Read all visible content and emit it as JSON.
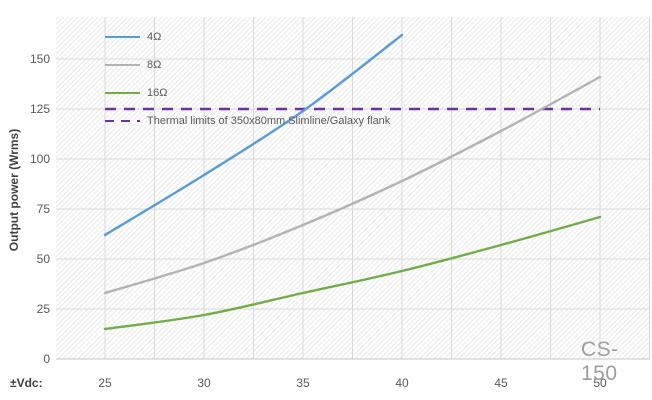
{
  "watermark": "CS-150",
  "axes": {
    "y_title": "Output power (Wrms)",
    "x_prefix_label": "±Vdc:"
  },
  "legend": {
    "items": [
      {
        "label": "4Ω",
        "color": "#5B9BD5",
        "style": "solid"
      },
      {
        "label": "8Ω",
        "color": "#B3B3B3",
        "style": "solid"
      },
      {
        "label": "16Ω",
        "color": "#70AD47",
        "style": "solid"
      },
      {
        "label": "Thermal limits of 350x80mm Slimline/Galaxy flank",
        "color": "#7030A0",
        "style": "dashed"
      }
    ]
  },
  "chart_data": {
    "type": "line",
    "title": "",
    "xlabel": "±Vdc:",
    "ylabel": "Output power (Wrms)",
    "x": [
      25,
      30,
      35,
      40,
      45,
      50
    ],
    "xticks": [
      25,
      30,
      35,
      40,
      45,
      50
    ],
    "yticks": [
      0,
      25,
      50,
      75,
      100,
      125,
      150
    ],
    "xlim": [
      22.5,
      52.5
    ],
    "ylim": [
      0,
      171
    ],
    "grid": {
      "on": true,
      "x_step": 2.5,
      "y_step": 25,
      "color": "#D9D9D9"
    },
    "plot_background": "diagonal-hatch",
    "legend_position": "top-left-inside",
    "series": [
      {
        "name": "4Ω",
        "color": "#5B9BD5",
        "values": [
          62,
          92,
          124,
          162,
          null,
          null
        ]
      },
      {
        "name": "8Ω",
        "color": "#B3B3B3",
        "values": [
          33,
          48,
          67,
          89,
          114,
          141
        ]
      },
      {
        "name": "16Ω",
        "color": "#70AD47",
        "values": [
          15,
          22,
          33,
          44,
          57,
          71
        ]
      }
    ],
    "reference_line": {
      "label": "Thermal limits of 350x80mm Slimline/Galaxy flank",
      "value": 125,
      "color": "#7030A0",
      "style": "dashed",
      "x_start": 25,
      "x_end": 50
    },
    "watermark": "CS-150"
  },
  "colors": {
    "tick_text": "#595959",
    "axis_line": "#C6C6C6",
    "hatch_line": "#E9E9E9",
    "gridline": "#D9D9D9",
    "watermark_text": "#9E9E9E"
  }
}
